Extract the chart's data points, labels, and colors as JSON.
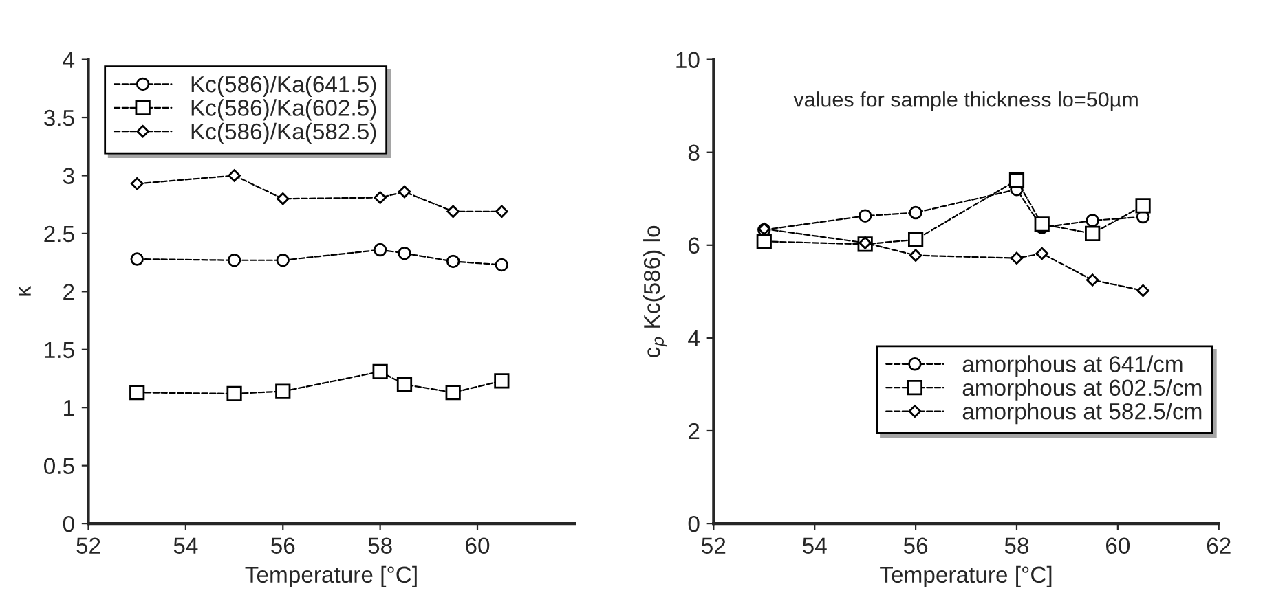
{
  "chart_data": [
    {
      "type": "line",
      "xlabel": "Temperature [°C]",
      "ylabel": "κ",
      "x": [
        53,
        55,
        56,
        58,
        58.5,
        59.5,
        60.5
      ],
      "xlim": [
        52,
        62
      ],
      "xticks": [
        52,
        54,
        56,
        58,
        60
      ],
      "ylim": [
        0,
        4
      ],
      "yticks": [
        0,
        0.5,
        1,
        1.5,
        2,
        2.5,
        3,
        3.5,
        4
      ],
      "grid": false,
      "legend": "top left",
      "line_style": "dashed",
      "series": [
        {
          "name": "Kc(586)/Ka(641.5)",
          "color": "#000000",
          "marker": "circle",
          "values": [
            2.28,
            2.27,
            2.27,
            2.36,
            2.33,
            2.26,
            2.23
          ]
        },
        {
          "name": "Kc(586)/Ka(602.5)",
          "color": "#000000",
          "marker": "square",
          "values": [
            1.13,
            1.12,
            1.14,
            1.31,
            1.2,
            1.13,
            1.23
          ]
        },
        {
          "name": "Kc(586)/Ka(582.5)",
          "color": "#000000",
          "marker": "diamond",
          "values": [
            2.93,
            3.0,
            2.8,
            2.81,
            2.86,
            2.69,
            2.69
          ]
        }
      ]
    },
    {
      "type": "line",
      "xlabel": "Temperature [°C]",
      "ylabel": "c$_{p}$ Kc(586) lo",
      "annotations": [
        "values for sample thickness lo=50µm"
      ],
      "x": [
        53,
        55,
        56,
        58,
        58.5,
        59.5,
        60.5
      ],
      "xlim": [
        52,
        62
      ],
      "xticks": [
        52,
        54,
        56,
        58,
        60,
        62
      ],
      "ylim": [
        0,
        10
      ],
      "yticks": [
        0,
        2,
        4,
        6,
        8,
        10
      ],
      "grid": false,
      "legend": "right",
      "line_style": "dashed",
      "series": [
        {
          "name": "amorphous at 641/cm",
          "color": "#000000",
          "marker": "circle",
          "values": [
            6.33,
            6.63,
            6.7,
            7.2,
            6.38,
            6.53,
            6.61
          ]
        },
        {
          "name": "amorphous at 602.5/cm",
          "color": "#000000",
          "marker": "square",
          "values": [
            6.08,
            6.02,
            6.12,
            7.4,
            6.45,
            6.25,
            6.85
          ]
        },
        {
          "name": "amorphous at 582.5/cm",
          "color": "#000000",
          "marker": "diamond",
          "values": [
            6.35,
            6.05,
            5.78,
            5.72,
            5.82,
            5.25,
            5.02
          ]
        }
      ]
    }
  ]
}
